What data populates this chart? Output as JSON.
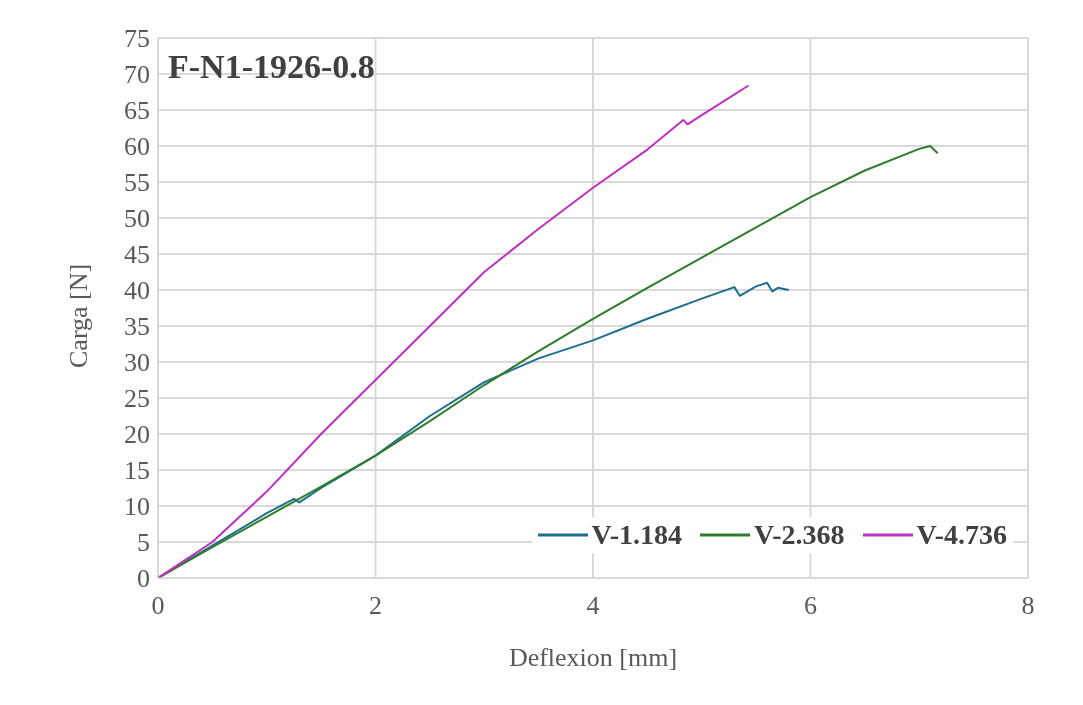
{
  "chart_data": {
    "type": "line",
    "title": "F-N1-1926-0.8",
    "xlabel": "Deflexion [mm]",
    "ylabel": "Carga [N]",
    "xlim": [
      0,
      8
    ],
    "xticks": [
      0,
      2,
      4,
      6,
      8
    ],
    "ylim": [
      0,
      75
    ],
    "yticks": [
      0,
      5,
      10,
      15,
      20,
      25,
      30,
      35,
      40,
      45,
      50,
      55,
      60,
      65,
      70,
      75
    ],
    "grid": true,
    "legend": "bottom right",
    "line_style": "solid",
    "series": [
      {
        "name": "V-1.184",
        "color": "#1f6d8f",
        "x": [
          0,
          0.5,
          1,
          1.25,
          1.3,
          1.5,
          2,
          2.5,
          3,
          3.5,
          4,
          4.5,
          5,
          5.3,
          5.35,
          5.5,
          5.6,
          5.65,
          5.7,
          5.8
        ],
        "values": [
          0,
          4.5,
          9,
          11,
          10.5,
          12.5,
          17,
          22.5,
          27.2,
          30.5,
          33,
          36,
          38.8,
          40.4,
          39.2,
          40.5,
          41,
          39.8,
          40.3,
          40
        ]
      },
      {
        "name": "V-2.368",
        "color": "#2e7d2e",
        "x": [
          0,
          0.5,
          1,
          1.5,
          2,
          2.5,
          3,
          3.5,
          4,
          4.5,
          5,
          5.5,
          6,
          6.5,
          7,
          7.1,
          7.17
        ],
        "values": [
          0,
          4.3,
          8.5,
          12.7,
          17,
          21.8,
          26.8,
          31.5,
          36,
          40.3,
          44.5,
          48.7,
          52.9,
          56.6,
          59.6,
          60,
          59
        ]
      },
      {
        "name": "V-4.736",
        "color": "#c030c0",
        "x": [
          0,
          0.5,
          1,
          1.5,
          2,
          2.5,
          3,
          3.5,
          4,
          4.5,
          4.83,
          4.87,
          4.95,
          5.2,
          5.43
        ],
        "values": [
          0,
          5,
          12,
          20,
          27.5,
          35,
          42.5,
          48.5,
          54.2,
          59.5,
          63.6,
          63,
          63.8,
          66.2,
          68.4
        ]
      }
    ]
  }
}
